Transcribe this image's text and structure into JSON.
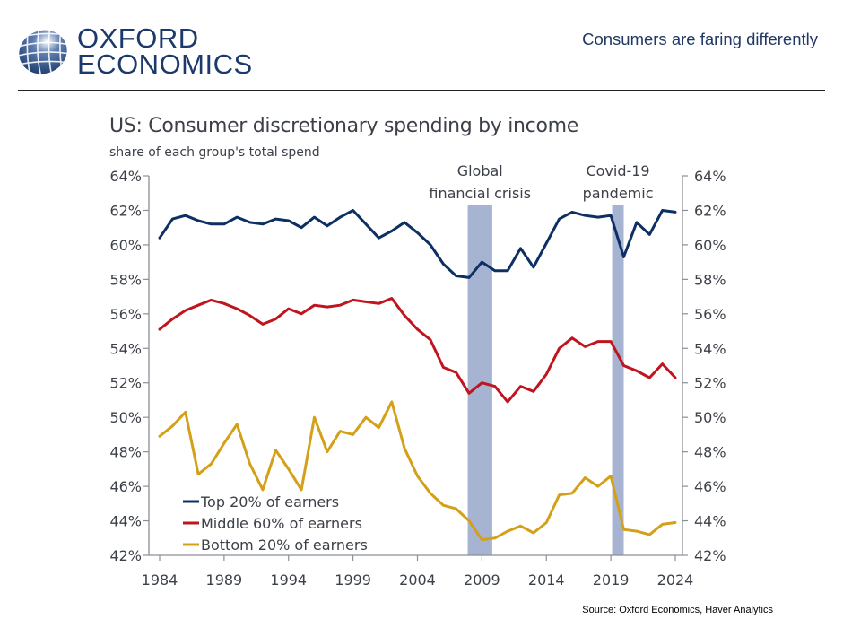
{
  "header": {
    "logo_line1": "OXFORD",
    "logo_line2": "ECONOMICS",
    "headline": "Consumers are faring differently"
  },
  "colors": {
    "brand": "#1b3a6b",
    "top": "#0d2f63",
    "middle": "#c0141e",
    "bottom": "#d4a017",
    "shade": "#a6b4d2",
    "axis": "#8a8f96",
    "text": "#3c4048"
  },
  "chart_data": {
    "type": "line",
    "title": "US: Consumer discretionary spending by income",
    "subtitle": "share of each group's total spend",
    "xlabel": "",
    "ylabel": "",
    "xlim": [
      1984,
      2024
    ],
    "ylim": [
      42,
      64
    ],
    "y_ticks": [
      "42%",
      "44%",
      "46%",
      "48%",
      "50%",
      "52%",
      "54%",
      "56%",
      "58%",
      "60%",
      "62%",
      "64%"
    ],
    "y_tick_values": [
      42,
      44,
      46,
      48,
      50,
      52,
      54,
      56,
      58,
      60,
      62,
      64
    ],
    "x_ticks": [
      "1984",
      "1989",
      "1994",
      "1999",
      "2004",
      "2009",
      "2014",
      "2019",
      "2024"
    ],
    "x_tick_values": [
      1984,
      1989,
      1994,
      1999,
      2004,
      2009,
      2014,
      2019,
      2024
    ],
    "secondary_y_axis": "mirrors left axis (42%–64%)",
    "grid": false,
    "legend_position": "bottom-left",
    "x": [
      1984,
      1985,
      1986,
      1987,
      1988,
      1989,
      1990,
      1991,
      1992,
      1993,
      1994,
      1995,
      1996,
      1997,
      1998,
      1999,
      2000,
      2001,
      2002,
      2003,
      2004,
      2005,
      2006,
      2007,
      2008,
      2009,
      2010,
      2011,
      2012,
      2013,
      2014,
      2015,
      2016,
      2017,
      2018,
      2019,
      2020,
      2021,
      2022,
      2023,
      2024
    ],
    "series": [
      {
        "name": "Top 20% of earners",
        "color_key": "top",
        "values": [
          60.4,
          61.5,
          61.7,
          61.4,
          61.2,
          61.2,
          61.6,
          61.3,
          61.2,
          61.5,
          61.4,
          61.0,
          61.6,
          61.1,
          61.6,
          62.0,
          61.2,
          60.4,
          60.8,
          61.3,
          60.7,
          60.0,
          58.9,
          58.2,
          58.1,
          59.0,
          58.5,
          58.5,
          59.8,
          58.7,
          60.1,
          61.5,
          61.9,
          61.7,
          61.6,
          61.7,
          59.3,
          61.3,
          60.6,
          62.0,
          61.9
        ]
      },
      {
        "name": "Middle 60% of earners",
        "color_key": "middle",
        "values": [
          55.1,
          55.7,
          56.2,
          56.5,
          56.8,
          56.6,
          56.3,
          55.9,
          55.4,
          55.7,
          56.3,
          56.0,
          56.5,
          56.4,
          56.5,
          56.8,
          56.7,
          56.6,
          56.9,
          55.9,
          55.1,
          54.5,
          52.9,
          52.6,
          51.4,
          52.0,
          51.8,
          50.9,
          51.8,
          51.5,
          52.5,
          54.0,
          54.6,
          54.1,
          54.4,
          54.4,
          53.0,
          52.7,
          52.3,
          53.1,
          52.3
        ]
      },
      {
        "name": "Bottom 20% of earners",
        "color_key": "bottom",
        "values": [
          48.9,
          49.5,
          50.3,
          46.7,
          47.3,
          48.5,
          49.6,
          47.3,
          45.8,
          48.1,
          47.0,
          45.8,
          50.0,
          48.0,
          49.2,
          49.0,
          50.0,
          49.4,
          50.9,
          48.2,
          46.6,
          45.6,
          44.9,
          44.7,
          44.0,
          42.9,
          43.0,
          43.4,
          43.7,
          43.3,
          43.9,
          45.5,
          45.6,
          46.5,
          46.0,
          46.6,
          43.5,
          43.4,
          43.2,
          43.8,
          43.9
        ]
      }
    ],
    "shaded_periods": [
      {
        "label_line1": "Global",
        "label_line2": "financial crisis",
        "start": 2007.9,
        "end": 2009.8
      },
      {
        "label_line1": "Covid-19",
        "label_line2": "pandemic",
        "start": 2019.1,
        "end": 2020.0
      }
    ]
  },
  "footer": {
    "source": "Source: Oxford Economics, Haver Analytics"
  }
}
